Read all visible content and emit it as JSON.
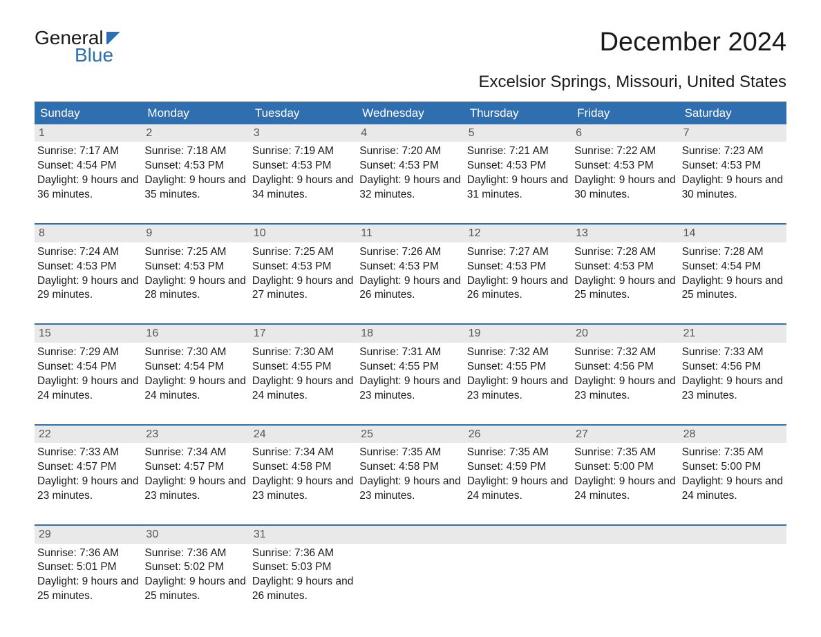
{
  "brand": {
    "line1": "General",
    "line2": "Blue"
  },
  "title": "December 2024",
  "location": "Excelsior Springs, Missouri, United States",
  "colors": {
    "accent": "#2f6fb0",
    "header_bg": "#2f6fb0",
    "header_text": "#ffffff",
    "daynum_bg": "#e9e9e9",
    "text": "#1a1a1a",
    "background": "#ffffff"
  },
  "daysOfWeek": [
    "Sunday",
    "Monday",
    "Tuesday",
    "Wednesday",
    "Thursday",
    "Friday",
    "Saturday"
  ],
  "weeks": [
    [
      {
        "n": "1",
        "sunrise": "7:17 AM",
        "sunset": "4:54 PM",
        "daylight": "9 hours and 36 minutes."
      },
      {
        "n": "2",
        "sunrise": "7:18 AM",
        "sunset": "4:53 PM",
        "daylight": "9 hours and 35 minutes."
      },
      {
        "n": "3",
        "sunrise": "7:19 AM",
        "sunset": "4:53 PM",
        "daylight": "9 hours and 34 minutes."
      },
      {
        "n": "4",
        "sunrise": "7:20 AM",
        "sunset": "4:53 PM",
        "daylight": "9 hours and 32 minutes."
      },
      {
        "n": "5",
        "sunrise": "7:21 AM",
        "sunset": "4:53 PM",
        "daylight": "9 hours and 31 minutes."
      },
      {
        "n": "6",
        "sunrise": "7:22 AM",
        "sunset": "4:53 PM",
        "daylight": "9 hours and 30 minutes."
      },
      {
        "n": "7",
        "sunrise": "7:23 AM",
        "sunset": "4:53 PM",
        "daylight": "9 hours and 30 minutes."
      }
    ],
    [
      {
        "n": "8",
        "sunrise": "7:24 AM",
        "sunset": "4:53 PM",
        "daylight": "9 hours and 29 minutes."
      },
      {
        "n": "9",
        "sunrise": "7:25 AM",
        "sunset": "4:53 PM",
        "daylight": "9 hours and 28 minutes."
      },
      {
        "n": "10",
        "sunrise": "7:25 AM",
        "sunset": "4:53 PM",
        "daylight": "9 hours and 27 minutes."
      },
      {
        "n": "11",
        "sunrise": "7:26 AM",
        "sunset": "4:53 PM",
        "daylight": "9 hours and 26 minutes."
      },
      {
        "n": "12",
        "sunrise": "7:27 AM",
        "sunset": "4:53 PM",
        "daylight": "9 hours and 26 minutes."
      },
      {
        "n": "13",
        "sunrise": "7:28 AM",
        "sunset": "4:53 PM",
        "daylight": "9 hours and 25 minutes."
      },
      {
        "n": "14",
        "sunrise": "7:28 AM",
        "sunset": "4:54 PM",
        "daylight": "9 hours and 25 minutes."
      }
    ],
    [
      {
        "n": "15",
        "sunrise": "7:29 AM",
        "sunset": "4:54 PM",
        "daylight": "9 hours and 24 minutes."
      },
      {
        "n": "16",
        "sunrise": "7:30 AM",
        "sunset": "4:54 PM",
        "daylight": "9 hours and 24 minutes."
      },
      {
        "n": "17",
        "sunrise": "7:30 AM",
        "sunset": "4:55 PM",
        "daylight": "9 hours and 24 minutes."
      },
      {
        "n": "18",
        "sunrise": "7:31 AM",
        "sunset": "4:55 PM",
        "daylight": "9 hours and 23 minutes."
      },
      {
        "n": "19",
        "sunrise": "7:32 AM",
        "sunset": "4:55 PM",
        "daylight": "9 hours and 23 minutes."
      },
      {
        "n": "20",
        "sunrise": "7:32 AM",
        "sunset": "4:56 PM",
        "daylight": "9 hours and 23 minutes."
      },
      {
        "n": "21",
        "sunrise": "7:33 AM",
        "sunset": "4:56 PM",
        "daylight": "9 hours and 23 minutes."
      }
    ],
    [
      {
        "n": "22",
        "sunrise": "7:33 AM",
        "sunset": "4:57 PM",
        "daylight": "9 hours and 23 minutes."
      },
      {
        "n": "23",
        "sunrise": "7:34 AM",
        "sunset": "4:57 PM",
        "daylight": "9 hours and 23 minutes."
      },
      {
        "n": "24",
        "sunrise": "7:34 AM",
        "sunset": "4:58 PM",
        "daylight": "9 hours and 23 minutes."
      },
      {
        "n": "25",
        "sunrise": "7:35 AM",
        "sunset": "4:58 PM",
        "daylight": "9 hours and 23 minutes."
      },
      {
        "n": "26",
        "sunrise": "7:35 AM",
        "sunset": "4:59 PM",
        "daylight": "9 hours and 24 minutes."
      },
      {
        "n": "27",
        "sunrise": "7:35 AM",
        "sunset": "5:00 PM",
        "daylight": "9 hours and 24 minutes."
      },
      {
        "n": "28",
        "sunrise": "7:35 AM",
        "sunset": "5:00 PM",
        "daylight": "9 hours and 24 minutes."
      }
    ],
    [
      {
        "n": "29",
        "sunrise": "7:36 AM",
        "sunset": "5:01 PM",
        "daylight": "9 hours and 25 minutes."
      },
      {
        "n": "30",
        "sunrise": "7:36 AM",
        "sunset": "5:02 PM",
        "daylight": "9 hours and 25 minutes."
      },
      {
        "n": "31",
        "sunrise": "7:36 AM",
        "sunset": "5:03 PM",
        "daylight": "9 hours and 26 minutes."
      },
      null,
      null,
      null,
      null
    ]
  ],
  "labels": {
    "sunrise": "Sunrise: ",
    "sunset": "Sunset: ",
    "daylight": "Daylight: "
  }
}
